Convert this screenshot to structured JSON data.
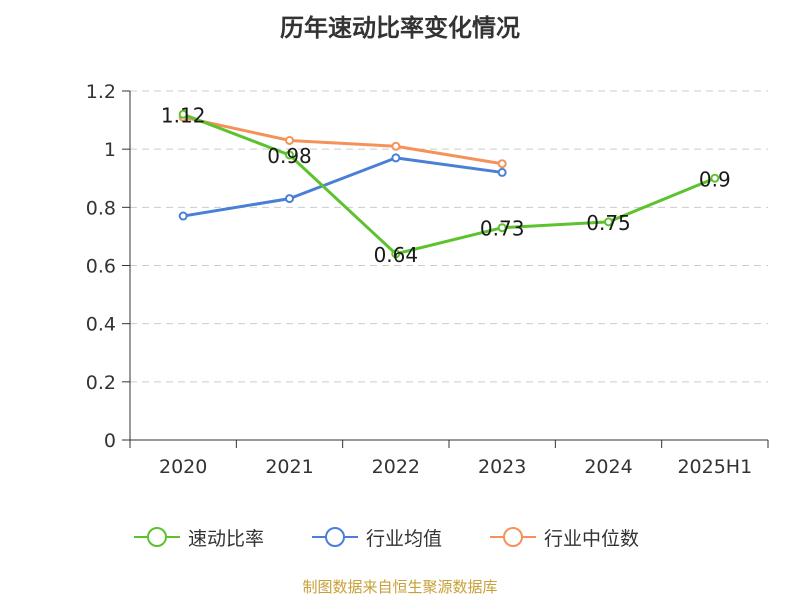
{
  "title": "历年速动比率变化情况",
  "source_text": "制图数据来自恒生聚源数据库",
  "chart_data": {
    "type": "line",
    "title": "历年速动比率变化情况",
    "categories": [
      "2020",
      "2021",
      "2022",
      "2023",
      "2024",
      "2025H1"
    ],
    "ylim": [
      0,
      1.2
    ],
    "yticks": [
      "0",
      "0.2",
      "0.4",
      "0.6",
      "0.8",
      "1",
      "1.2"
    ],
    "grid": true,
    "legend_position": "bottom",
    "series": [
      {
        "name": "速动比率",
        "color": "#5cc22e",
        "values": [
          1.12,
          0.98,
          0.64,
          0.73,
          0.75,
          0.9
        ],
        "labels": [
          "1.12",
          "0.98",
          "0.64",
          "0.73",
          "0.75",
          "0.9"
        ]
      },
      {
        "name": "行业均值",
        "color": "#4a7fd6",
        "values": [
          0.77,
          0.83,
          0.97,
          0.92,
          null,
          null
        ]
      },
      {
        "name": "行业中位数",
        "color": "#f5925a",
        "values": [
          1.11,
          1.03,
          1.01,
          0.95,
          null,
          null
        ]
      }
    ]
  }
}
